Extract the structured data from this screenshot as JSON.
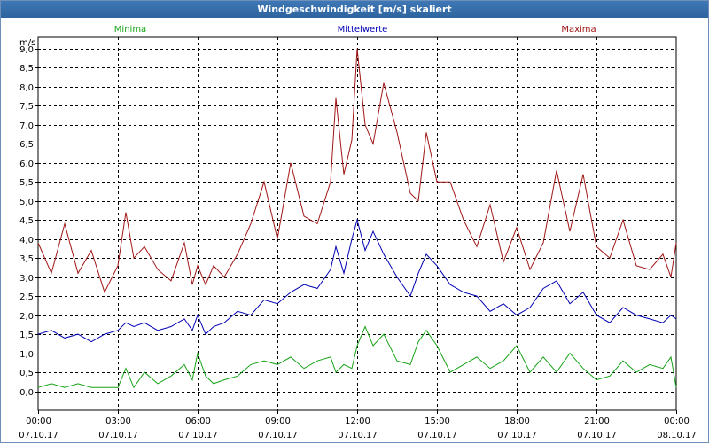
{
  "window": {
    "title": "Windgeschwindigkeit [m/s] skaliert"
  },
  "colors": {
    "titlebar": "#3466a3",
    "grid": "#000000",
    "minima": "#16a316",
    "mittelwerte": "#0000b4",
    "maxima": "#a01515"
  },
  "chart_data": {
    "type": "line",
    "title": "Windgeschwindigkeit [m/s] skaliert",
    "ylabel": "m/s",
    "xlabel": "",
    "grid": true,
    "ylim": [
      -0.5,
      9.3
    ],
    "xlim": [
      0,
      24
    ],
    "y_ticks": [
      "0,0",
      "0,5",
      "1,0",
      "1,5",
      "2,0",
      "2,5",
      "3,0",
      "3,5",
      "4,0",
      "4,5",
      "5,0",
      "5,5",
      "6,0",
      "6,5",
      "7,0",
      "7,5",
      "8,0",
      "8,5",
      "9,0"
    ],
    "x_ticks": [
      {
        "time": "00:00",
        "date": "07.10.17"
      },
      {
        "time": "03:00",
        "date": "07.10.17"
      },
      {
        "time": "06:00",
        "date": "07.10.17"
      },
      {
        "time": "09:00",
        "date": "07.10.17"
      },
      {
        "time": "12:00",
        "date": "07.10.17"
      },
      {
        "time": "15:00",
        "date": "07.10.17"
      },
      {
        "time": "18:00",
        "date": "07.10.17"
      },
      {
        "time": "21:00",
        "date": "07.10.17"
      },
      {
        "time": "00:00",
        "date": "08.10.17"
      }
    ],
    "legend": [
      "Minima",
      "Mittelwerte",
      "Maxima"
    ],
    "series": [
      {
        "name": "Minima",
        "color": "#16a316",
        "x": [
          0,
          0.5,
          1,
          1.5,
          2,
          2.5,
          3,
          3.3,
          3.6,
          4,
          4.5,
          5,
          5.5,
          5.8,
          6,
          6.3,
          6.6,
          7,
          7.5,
          8,
          8.5,
          9,
          9.5,
          10,
          10.5,
          11,
          11.2,
          11.5,
          11.8,
          12,
          12.3,
          12.6,
          13,
          13.5,
          14,
          14.3,
          14.6,
          15,
          15.5,
          16,
          16.5,
          17,
          17.5,
          18,
          18.5,
          19,
          19.5,
          20,
          20.5,
          21,
          21.5,
          22,
          22.5,
          23,
          23.5,
          23.8,
          24
        ],
        "y": [
          0.1,
          0.2,
          0.1,
          0.2,
          0.1,
          0.1,
          0.1,
          0.6,
          0.1,
          0.5,
          0.2,
          0.4,
          0.7,
          0.3,
          1.0,
          0.4,
          0.2,
          0.3,
          0.4,
          0.7,
          0.8,
          0.7,
          0.9,
          0.6,
          0.8,
          0.9,
          0.5,
          0.7,
          0.6,
          1.2,
          1.7,
          1.2,
          1.5,
          0.8,
          0.7,
          1.3,
          1.6,
          1.2,
          0.5,
          0.7,
          0.9,
          0.6,
          0.8,
          1.2,
          0.5,
          0.9,
          0.5,
          1.0,
          0.6,
          0.3,
          0.4,
          0.8,
          0.5,
          0.7,
          0.6,
          0.9,
          0.1
        ]
      },
      {
        "name": "Mittelwerte",
        "color": "#0000b4",
        "x": [
          0,
          0.5,
          1,
          1.5,
          2,
          2.5,
          3,
          3.3,
          3.6,
          4,
          4.5,
          5,
          5.5,
          5.8,
          6,
          6.3,
          6.6,
          7,
          7.5,
          8,
          8.5,
          9,
          9.5,
          10,
          10.5,
          11,
          11.2,
          11.5,
          11.8,
          12,
          12.3,
          12.6,
          13,
          13.5,
          14,
          14.3,
          14.6,
          15,
          15.5,
          16,
          16.5,
          17,
          17.5,
          18,
          18.5,
          19,
          19.5,
          20,
          20.5,
          21,
          21.5,
          22,
          22.5,
          23,
          23.5,
          23.8,
          24
        ],
        "y": [
          1.5,
          1.6,
          1.4,
          1.5,
          1.3,
          1.5,
          1.6,
          1.8,
          1.7,
          1.8,
          1.6,
          1.7,
          1.9,
          1.6,
          2.0,
          1.5,
          1.7,
          1.8,
          2.1,
          2.0,
          2.4,
          2.3,
          2.6,
          2.8,
          2.7,
          3.2,
          3.8,
          3.1,
          4.0,
          4.5,
          3.7,
          4.2,
          3.6,
          3.0,
          2.5,
          3.1,
          3.6,
          3.3,
          2.8,
          2.6,
          2.5,
          2.1,
          2.3,
          2.0,
          2.2,
          2.7,
          2.9,
          2.3,
          2.6,
          2.0,
          1.8,
          2.2,
          2.0,
          1.9,
          1.8,
          2.0,
          1.9
        ]
      },
      {
        "name": "Maxima",
        "color": "#a01515",
        "x": [
          0,
          0.5,
          1,
          1.5,
          2,
          2.5,
          3,
          3.3,
          3.6,
          4,
          4.5,
          5,
          5.5,
          5.8,
          6,
          6.3,
          6.6,
          7,
          7.5,
          8,
          8.5,
          9,
          9.5,
          10,
          10.5,
          11,
          11.2,
          11.5,
          11.8,
          12,
          12.3,
          12.6,
          13,
          13.5,
          14,
          14.3,
          14.6,
          15,
          15.5,
          16,
          16.5,
          17,
          17.5,
          18,
          18.5,
          19,
          19.5,
          20,
          20.5,
          21,
          21.5,
          22,
          22.5,
          23,
          23.5,
          23.8,
          24
        ],
        "y": [
          3.9,
          3.1,
          4.4,
          3.1,
          3.7,
          2.6,
          3.3,
          4.7,
          3.5,
          3.8,
          3.2,
          2.9,
          3.9,
          2.8,
          3.3,
          2.8,
          3.3,
          3.0,
          3.6,
          4.4,
          5.5,
          4.0,
          6.0,
          4.6,
          4.4,
          5.5,
          7.7,
          5.7,
          6.6,
          9.0,
          7.0,
          6.5,
          8.1,
          6.8,
          5.2,
          5.0,
          6.8,
          5.5,
          5.5,
          4.5,
          3.8,
          4.9,
          3.4,
          4.3,
          3.2,
          3.9,
          5.8,
          4.2,
          5.7,
          3.8,
          3.5,
          4.5,
          3.3,
          3.2,
          3.6,
          3.0,
          3.9
        ]
      }
    ]
  }
}
